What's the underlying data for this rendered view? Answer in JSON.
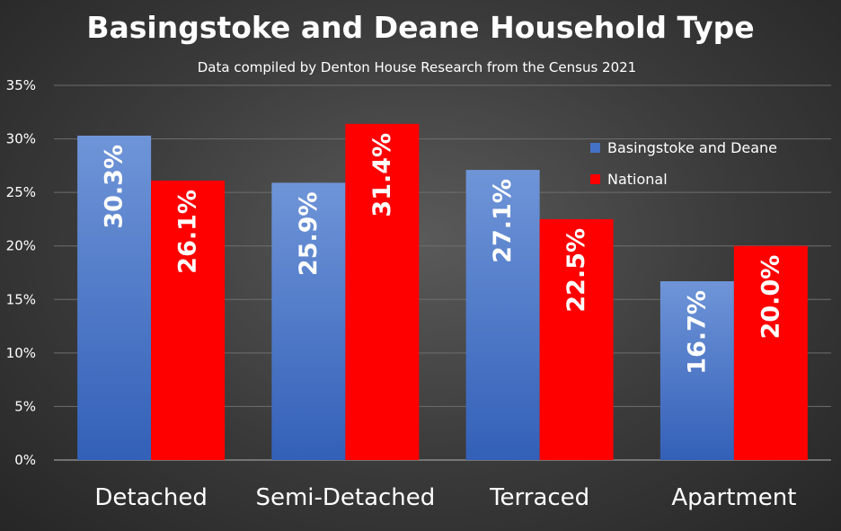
{
  "chart_data": {
    "type": "bar",
    "title": "Basingstoke and Deane Household Type",
    "subtitle": "Data compiled by Denton House Research from the Census 2021",
    "categories": [
      "Detached",
      "Semi-Detached",
      "Terraced",
      "Apartment"
    ],
    "series": [
      {
        "name": "Basingstoke and Deane",
        "values": [
          30.3,
          25.9,
          27.1,
          16.7
        ],
        "labels": [
          "30.3%",
          "25.9%",
          "27.1%",
          "16.7%"
        ],
        "color": "#4472c4"
      },
      {
        "name": "National",
        "values": [
          26.1,
          31.4,
          22.5,
          20.0
        ],
        "labels": [
          "26.1%",
          "31.4%",
          "22.5%",
          "20.0%"
        ],
        "color": "#ff0000"
      }
    ],
    "yticks": [
      "0%",
      "5%",
      "10%",
      "15%",
      "20%",
      "25%",
      "30%",
      "35%"
    ],
    "ylim": [
      0,
      35
    ],
    "grid": true,
    "legend_position": "top-right"
  }
}
